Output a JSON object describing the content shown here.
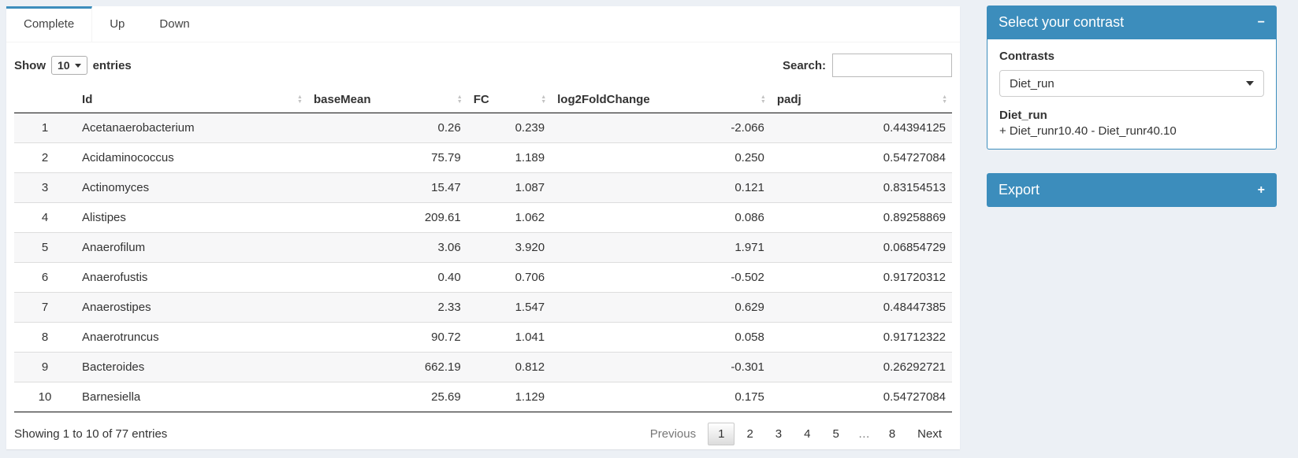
{
  "colors": {
    "primary": "#3c8dbc",
    "page_bg": "#ecf0f5",
    "stripe": "#f7f7f8"
  },
  "tabs": [
    {
      "label": "Complete",
      "active": true
    },
    {
      "label": "Up",
      "active": false
    },
    {
      "label": "Down",
      "active": false
    }
  ],
  "length_control": {
    "prefix": "Show",
    "value": "10",
    "suffix": "entries"
  },
  "search": {
    "label": "Search:",
    "value": ""
  },
  "table": {
    "col_keys": [
      "rownum",
      "id",
      "basemean",
      "fc",
      "log2foldchange",
      "padj"
    ],
    "columns": [
      {
        "label": "",
        "sortable": false,
        "align": "center"
      },
      {
        "label": "Id",
        "sortable": true,
        "align": "left"
      },
      {
        "label": "baseMean",
        "sortable": true,
        "align": "right"
      },
      {
        "label": "FC",
        "sortable": true,
        "align": "right"
      },
      {
        "label": "log2FoldChange",
        "sortable": true,
        "align": "right"
      },
      {
        "label": "padj",
        "sortable": true,
        "align": "right"
      }
    ],
    "sort_icon_up": "▲",
    "sort_icon_down": "▼",
    "rows": [
      [
        "1",
        "Acetanaerobacterium",
        "0.26",
        "0.239",
        "-2.066",
        "0.44394125"
      ],
      [
        "2",
        "Acidaminococcus",
        "75.79",
        "1.189",
        "0.250",
        "0.54727084"
      ],
      [
        "3",
        "Actinomyces",
        "15.47",
        "1.087",
        "0.121",
        "0.83154513"
      ],
      [
        "4",
        "Alistipes",
        "209.61",
        "1.062",
        "0.086",
        "0.89258869"
      ],
      [
        "5",
        "Anaerofilum",
        "3.06",
        "3.920",
        "1.971",
        "0.06854729"
      ],
      [
        "6",
        "Anaerofustis",
        "0.40",
        "0.706",
        "-0.502",
        "0.91720312"
      ],
      [
        "7",
        "Anaerostipes",
        "2.33",
        "1.547",
        "0.629",
        "0.48447385"
      ],
      [
        "8",
        "Anaerotruncus",
        "90.72",
        "1.041",
        "0.058",
        "0.91712322"
      ],
      [
        "9",
        "Bacteroides",
        "662.19",
        "0.812",
        "-0.301",
        "0.26292721"
      ],
      [
        "10",
        "Barnesiella",
        "25.69",
        "1.129",
        "0.175",
        "0.54727084"
      ]
    ]
  },
  "footer": {
    "info": "Showing 1 to 10 of 77 entries",
    "pagination": [
      {
        "label": "Previous",
        "type": "disabled"
      },
      {
        "label": "1",
        "type": "active"
      },
      {
        "label": "2",
        "type": "page"
      },
      {
        "label": "3",
        "type": "page"
      },
      {
        "label": "4",
        "type": "page"
      },
      {
        "label": "5",
        "type": "page"
      },
      {
        "label": "…",
        "type": "ellipsis"
      },
      {
        "label": "8",
        "type": "page"
      },
      {
        "label": "Next",
        "type": "page"
      }
    ]
  },
  "contrast_panel": {
    "title": "Select your contrast",
    "collapse_icon": "−",
    "label": "Contrasts",
    "selected": "Diet_run",
    "description_title": "Diet_run",
    "description": "+ Diet_runr10.40 - Diet_runr40.10"
  },
  "export_panel": {
    "title": "Export",
    "collapse_icon": "+"
  }
}
